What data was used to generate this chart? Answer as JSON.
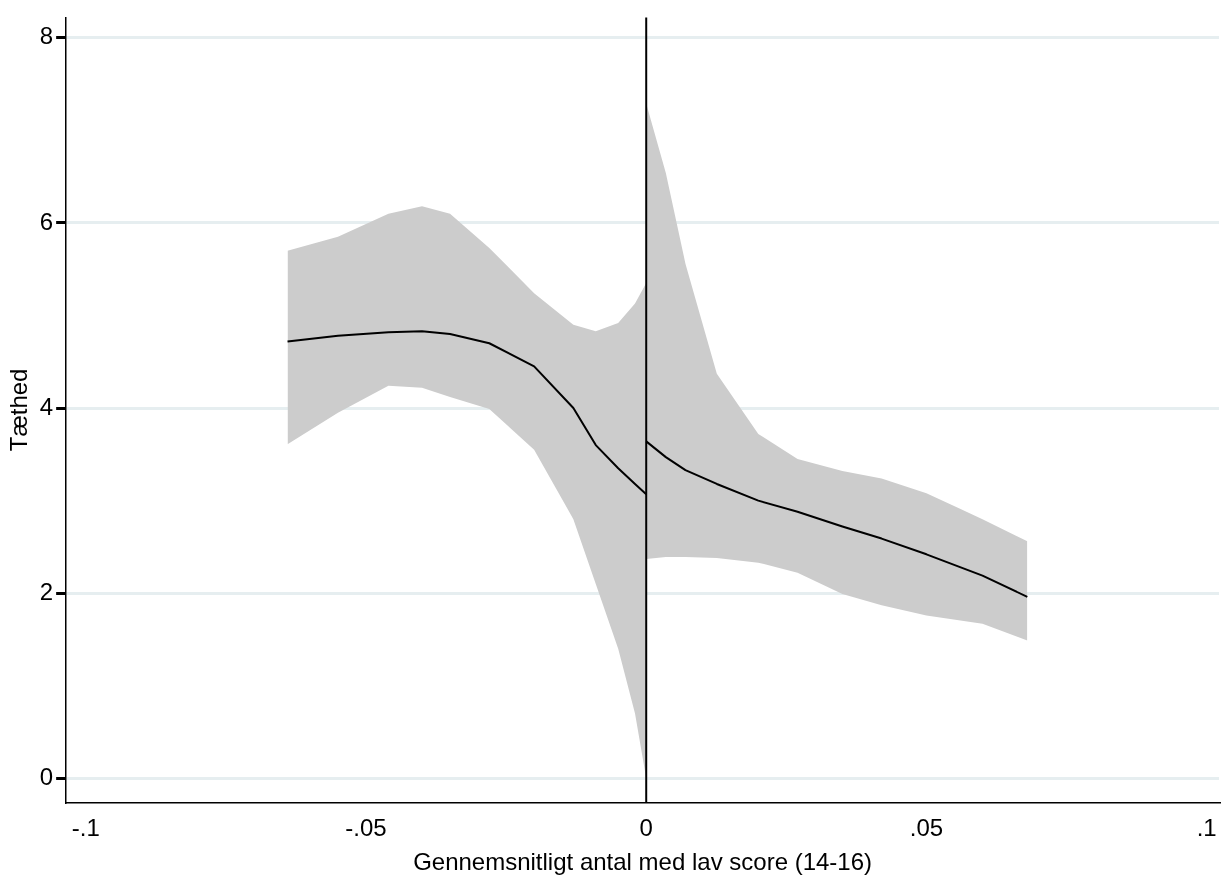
{
  "chart_data": {
    "type": "line",
    "xlabel": "Gennemsnitligt antal med lav score (14-16)",
    "ylabel": "Tæthed",
    "xlim": [
      -0.1035,
      0.1022
    ],
    "xticks": [
      {
        "value": -0.1,
        "label": "-.1"
      },
      {
        "value": -0.05,
        "label": "-.05"
      },
      0,
      {
        "value": 0.05,
        "label": ".05"
      },
      {
        "value": 0.1,
        "label": ".1"
      }
    ],
    "ylim": [
      -0.26,
      8.22
    ],
    "yticks": [
      0,
      2,
      4,
      6,
      8
    ],
    "grid": "y",
    "legend": false,
    "marker": "none",
    "line_style": "solid",
    "ref_lines": [
      {
        "axis": "x",
        "value": 0,
        "color": "#000000"
      }
    ],
    "series": [
      {
        "color": "#000000",
        "x": [
          -0.064,
          -0.055,
          -0.046,
          -0.04,
          -0.035,
          -0.028,
          -0.02,
          -0.013,
          -0.009,
          -0.005,
          -0.002,
          0
        ],
        "values": [
          4.72,
          4.78,
          4.82,
          4.83,
          4.8,
          4.7,
          4.45,
          4.0,
          3.6,
          3.35,
          3.18,
          3.07
        ],
        "lower": [
          3.61,
          3.95,
          4.24,
          4.22,
          4.12,
          3.99,
          3.55,
          2.8,
          2.1,
          1.4,
          0.7,
          0
        ],
        "upper": [
          5.7,
          5.85,
          6.1,
          6.18,
          6.1,
          5.73,
          5.24,
          4.9,
          4.83,
          4.92,
          5.13,
          5.35
        ]
      },
      {
        "color": "#000000",
        "x": [
          0,
          0.0035,
          0.007,
          0.0126,
          0.02,
          0.027,
          0.035,
          0.042,
          0.05,
          0.06,
          0.068
        ],
        "values": [
          3.64,
          3.47,
          3.33,
          3.18,
          3.0,
          2.88,
          2.72,
          2.59,
          2.42,
          2.19,
          1.96
        ],
        "lower": [
          2.37,
          2.39,
          2.39,
          2.38,
          2.33,
          2.22,
          1.99,
          1.87,
          1.76,
          1.67,
          1.49
        ],
        "upper": [
          7.29,
          6.54,
          5.56,
          4.37,
          3.72,
          3.45,
          3.32,
          3.24,
          3.08,
          2.8,
          2.56
        ]
      }
    ]
  }
}
